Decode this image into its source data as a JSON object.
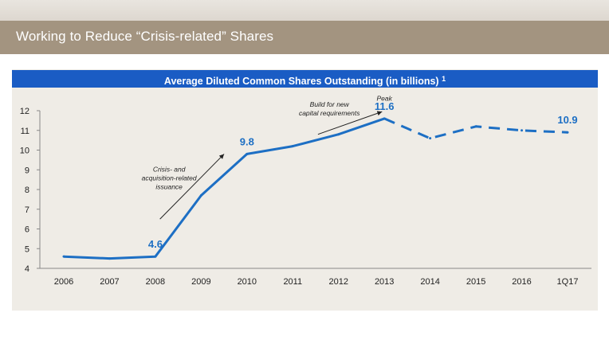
{
  "slide": {
    "title": "Working to Reduce “Crisis-related” Shares"
  },
  "colors": {
    "title_bar": "#a39480",
    "header": "#1a5cc4",
    "line": "#1d6fc4",
    "panel": "#efece6"
  },
  "chart_data": {
    "type": "line",
    "title": "Average Diluted Common Shares Outstanding (in billions)",
    "title_footnote": "1",
    "categories": [
      "2006",
      "2007",
      "2008",
      "2009",
      "2010",
      "2011",
      "2012",
      "2013",
      "2014",
      "2015",
      "2016",
      "1Q17"
    ],
    "values": [
      4.6,
      4.5,
      4.6,
      7.7,
      9.8,
      10.2,
      10.8,
      11.6,
      10.6,
      11.2,
      11.0,
      10.9
    ],
    "solid_through_index": 7,
    "dashed_from_index": 7,
    "ylim": [
      4,
      12
    ],
    "yticks": [
      4,
      5,
      6,
      7,
      8,
      9,
      10,
      11,
      12
    ],
    "xlabel": "",
    "ylabel": "",
    "data_labels": [
      {
        "index": 2,
        "text": "4.6"
      },
      {
        "index": 4,
        "text": "9.8"
      },
      {
        "index": 7,
        "text": "11.6"
      },
      {
        "index": 11,
        "text": "10.9"
      }
    ],
    "annotations": [
      {
        "lines": [
          "Crisis- and",
          "acquisition-related",
          "issuance"
        ],
        "x_index": 2.3,
        "y": 8.9
      },
      {
        "lines": [
          "Build for new",
          "capital requirements"
        ],
        "x_index": 5.8,
        "y": 12.2
      },
      {
        "lines": [
          "Peak"
        ],
        "x_index": 7.0,
        "y": 12.5
      }
    ],
    "arrows": [
      {
        "from": [
          2.1,
          6.5
        ],
        "to": [
          3.5,
          9.8
        ]
      },
      {
        "from": [
          5.55,
          10.8
        ],
        "to": [
          6.95,
          11.95
        ]
      }
    ]
  }
}
